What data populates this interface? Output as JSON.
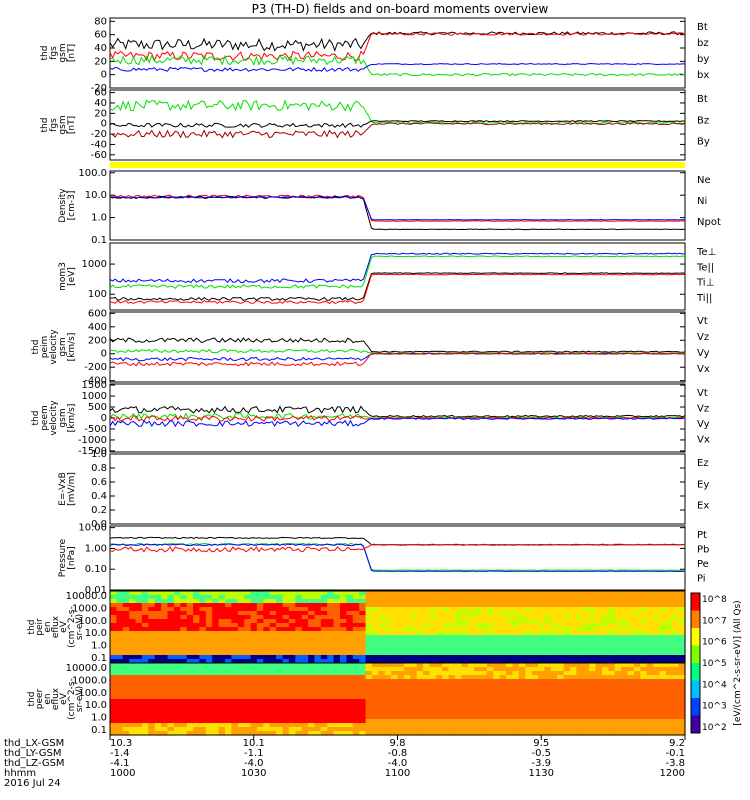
{
  "title": "P3 (TH-D) fields and on-board moments overview",
  "colors": {
    "black": "#000000",
    "red": "#ff0000",
    "green": "#00e000",
    "blue": "#0000ff",
    "darkred": "#a00000",
    "yellow": "#ffff00"
  },
  "chart_data": {
    "type": "line",
    "time_ticks": [
      "1000",
      "1030",
      "1100",
      "1130",
      "1200"
    ],
    "footer_rows": [
      {
        "label": "thd_LX-GSM",
        "values": [
          "10.3",
          "10.1",
          "9.8",
          "9.5",
          "9.2"
        ]
      },
      {
        "label": "thd_LY-GSM",
        "values": [
          "-1.4",
          "-1.1",
          "-0.8",
          "-0.5",
          "-0.1"
        ]
      },
      {
        "label": "thd_LZ-GSM",
        "values": [
          "-4.1",
          "-4.0",
          "-4.0",
          "-3.9",
          "-3.8"
        ]
      },
      {
        "label": "hhmm",
        "values": [
          "1000",
          "1030",
          "1100",
          "1130",
          "1200"
        ]
      }
    ],
    "date": "2016 Jul 24",
    "transition_frac": 0.44,
    "panels": [
      {
        "id": "fgs",
        "ylabel": [
          "thd",
          "fgs",
          "gsm",
          "[nT]"
        ],
        "yticks": [
          "80",
          "60",
          "40",
          "20",
          "0",
          "-20"
        ],
        "ylim": [
          -20,
          85
        ],
        "log": false,
        "legend": [
          {
            "name": "Bt",
            "color": "#000000"
          },
          {
            "name": "bz",
            "color": "#ff0000"
          },
          {
            "name": "by",
            "color": "#00e000"
          },
          {
            "name": "bx",
            "color": "#0000ff"
          }
        ],
        "series": [
          {
            "name": "Bt",
            "color": "#000000",
            "before": 45,
            "after": 62,
            "noise": 9
          },
          {
            "name": "bz",
            "color": "#ff0000",
            "before": 28,
            "after": 61,
            "noise": 7
          },
          {
            "name": "by",
            "color": "#00e000",
            "before": 22,
            "after": 0,
            "noise": 7
          },
          {
            "name": "bx",
            "color": "#0000ff",
            "before": 8,
            "after": 16,
            "noise": 3
          }
        ]
      },
      {
        "id": "fgs-dsl",
        "ylabel": [
          "thd",
          "fgs",
          "gsm",
          "[nT]"
        ],
        "yticks": [
          "60",
          "40",
          "20",
          "0",
          "-20",
          "-40",
          "-60"
        ],
        "ylim": [
          -70,
          65
        ],
        "log": false,
        "legend": [
          {
            "name": "Bt",
            "color": "#000000"
          },
          {
            "name": "Bz",
            "color": "#a00000"
          },
          {
            "name": "By",
            "color": "#00e000"
          }
        ],
        "series": [
          {
            "name": "By",
            "color": "#00e000",
            "before": 35,
            "after": 2,
            "noise": 10
          },
          {
            "name": "Bt",
            "color": "#000000",
            "before": -3,
            "after": 5,
            "noise": 4
          },
          {
            "name": "Bz",
            "color": "#a00000",
            "before": -20,
            "after": 0,
            "noise": 7
          }
        ]
      },
      {
        "id": "density",
        "ylabel": [
          "Density",
          "[cm-3]"
        ],
        "yticks": [
          "100.0",
          "10.0",
          "1.0",
          "0.1"
        ],
        "ylim": [
          0.1,
          120
        ],
        "log": true,
        "legend": [
          {
            "name": "Ne",
            "color": "#ff0000"
          },
          {
            "name": "Ni",
            "color": "#000000"
          },
          {
            "name": "Npot",
            "color": "#0000ff"
          }
        ],
        "series": [
          {
            "name": "Ne",
            "color": "#ff0000",
            "before": 9,
            "after": 0.7,
            "noise": 0.05
          },
          {
            "name": "Ni",
            "color": "#000000",
            "before": 8,
            "after": 0.3,
            "noise": 0.05
          },
          {
            "name": "Npot",
            "color": "#0000ff",
            "before": 8,
            "after": 0.8,
            "noise": 0.03
          }
        ]
      },
      {
        "id": "temp",
        "ylabel": [
          "mom3",
          "[eV]"
        ],
        "yticks": [
          "1000",
          "100"
        ],
        "ylim": [
          30,
          5000
        ],
        "log": true,
        "legend": [
          {
            "name": "Te⊥",
            "color": "#ff0000"
          },
          {
            "name": "Te||",
            "color": "#000000"
          },
          {
            "name": "Ti⊥",
            "color": "#0000ff"
          },
          {
            "name": "Ti||",
            "color": "#00e000"
          }
        ],
        "series": [
          {
            "name": "Ti⊥",
            "color": "#0000ff",
            "before": 280,
            "after": 2200,
            "noise": 0.06
          },
          {
            "name": "Ti||",
            "color": "#00e000",
            "before": 180,
            "after": 1800,
            "noise": 0.06
          },
          {
            "name": "Te||",
            "color": "#000000",
            "before": 70,
            "after": 500,
            "noise": 0.05
          },
          {
            "name": "Te⊥",
            "color": "#ff0000",
            "before": 55,
            "after": 450,
            "noise": 0.05
          }
        ]
      },
      {
        "id": "peim",
        "ylabel": [
          "thd",
          "peim",
          "velocity",
          "gsm",
          "[km/s]"
        ],
        "yticks": [
          "600",
          "400",
          "200",
          "0",
          "-200",
          "-400"
        ],
        "ylim": [
          -420,
          620
        ],
        "log": false,
        "legend": [
          {
            "name": "Vt",
            "color": "#000000"
          },
          {
            "name": "Vz",
            "color": "#ff0000"
          },
          {
            "name": "Vy",
            "color": "#00e000"
          },
          {
            "name": "Vx",
            "color": "#0000ff"
          }
        ],
        "series": [
          {
            "name": "Vt",
            "color": "#000000",
            "before": 200,
            "after": 30,
            "noise": 35
          },
          {
            "name": "Vy",
            "color": "#00e000",
            "before": 40,
            "after": 10,
            "noise": 25
          },
          {
            "name": "Vx",
            "color": "#0000ff",
            "before": -80,
            "after": 0,
            "noise": 25
          },
          {
            "name": "Vz",
            "color": "#ff0000",
            "before": -150,
            "after": 0,
            "noise": 30
          }
        ]
      },
      {
        "id": "peem",
        "ylabel": [
          "thd",
          "peem",
          "velocity",
          "gsm",
          "[km/s]"
        ],
        "yticks": [
          "1500",
          "1000",
          "500",
          "0",
          "-500",
          "-1000",
          "-1500"
        ],
        "ylim": [
          -1550,
          1550
        ],
        "log": false,
        "legend": [
          {
            "name": "Vt",
            "color": "#000000"
          },
          {
            "name": "Vz",
            "color": "#ff0000"
          },
          {
            "name": "Vy",
            "color": "#00e000"
          },
          {
            "name": "Vx",
            "color": "#0000ff"
          }
        ],
        "series": [
          {
            "name": "Vt",
            "color": "#000000",
            "before": 380,
            "after": 80,
            "noise": 150
          },
          {
            "name": "Vy",
            "color": "#00e000",
            "before": 80,
            "after": 20,
            "noise": 130
          },
          {
            "name": "Vz",
            "color": "#ff0000",
            "before": -20,
            "after": 0,
            "noise": 130
          },
          {
            "name": "Vx",
            "color": "#0000ff",
            "before": -250,
            "after": -30,
            "noise": 130
          }
        ]
      },
      {
        "id": "efield",
        "ylabel": [
          "E=-VxB",
          "[mV/m]"
        ],
        "yticks": [
          "1.0",
          "0.8",
          "0.6",
          "0.4",
          "0.2",
          "0.0"
        ],
        "ylim": [
          0,
          1
        ],
        "log": false,
        "legend": [
          {
            "name": "Ez",
            "color": "#ff0000"
          },
          {
            "name": "Ey",
            "color": "#00e000"
          },
          {
            "name": "Ex",
            "color": "#0000ff"
          }
        ],
        "series": []
      },
      {
        "id": "pressure",
        "ylabel": [
          "Pressure",
          "[nPa]"
        ],
        "yticks": [
          "10.00",
          "1.00",
          "0.10",
          "0.01"
        ],
        "ylim": [
          0.01,
          12
        ],
        "log": true,
        "legend": [
          {
            "name": "Pt",
            "color": "#000000"
          },
          {
            "name": "Pb",
            "color": "#ff0000"
          },
          {
            "name": "Pe",
            "color": "#00e000"
          },
          {
            "name": "Pi",
            "color": "#0000ff"
          }
        ],
        "series": [
          {
            "name": "Pt",
            "color": "#000000",
            "before": 3.2,
            "after": 1.5,
            "noise": 0.03
          },
          {
            "name": "Pe",
            "color": "#00e000",
            "before": 1.6,
            "after": 0.09,
            "noise": 0.04
          },
          {
            "name": "Pi",
            "color": "#0000ff",
            "before": 1.5,
            "after": 0.08,
            "noise": 0.04
          },
          {
            "name": "Pb",
            "color": "#ff0000",
            "before": 0.9,
            "after": 1.5,
            "noise": 0.12
          }
        ]
      }
    ],
    "spectrograms": [
      {
        "id": "peir",
        "ylabel": [
          "thd",
          "peir",
          "en",
          "eflux",
          "eV",
          "(cm^2-s-",
          "sr-eV)"
        ],
        "yticks": [
          "10000.0",
          "1000.0",
          "100.0",
          "10.0",
          "1.0",
          "0.1"
        ]
      },
      {
        "id": "peer",
        "ylabel": [
          "thd",
          "peer",
          "en",
          "eflux",
          "eV",
          "(cm^2-s-",
          "sr-eV)"
        ],
        "yticks": [
          "10000.0",
          "1000.0",
          "100.0",
          "10.0",
          "1.0",
          "0.1"
        ]
      }
    ],
    "colorbar": {
      "ticks": [
        "10^8",
        "10^7",
        "10^6",
        "10^5",
        "10^4",
        "10^3",
        "10^2"
      ],
      "label": "[eV/(cm^2-s-sr-eV)] (All Qs)"
    }
  }
}
